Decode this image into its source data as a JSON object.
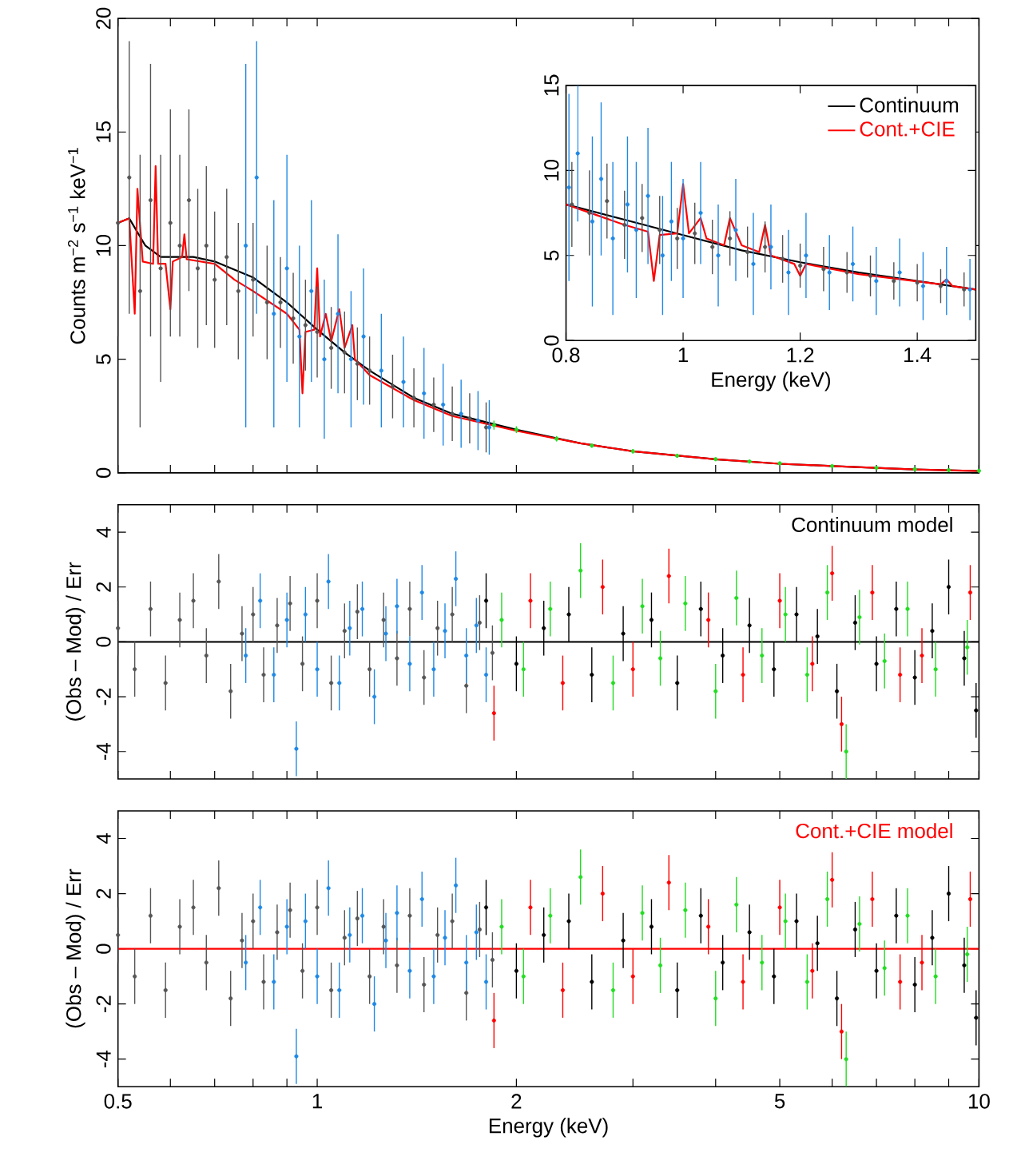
{
  "chart_data": [
    {
      "type": "scatter",
      "ylabel": "Counts m$^{−2}$ s$^{−1}$ keV$^{−1}$",
      "log": "x",
      "xlim": [
        0.5,
        10
      ],
      "ylim": [
        0,
        20
      ],
      "tick_labels": "y",
      "xticks": [
        {
          "value": 0.5,
          "label": null
        },
        {
          "value": 0.6,
          "label": null
        },
        {
          "value": 0.7,
          "label": null
        },
        {
          "value": 0.8,
          "label": null
        },
        {
          "value": 0.9,
          "label": null
        },
        {
          "value": 1,
          "label": null
        },
        {
          "value": 2,
          "label": null
        },
        {
          "value": 3,
          "label": null
        },
        {
          "value": 4,
          "label": null
        },
        {
          "value": 5,
          "label": null
        },
        {
          "value": 6,
          "label": null
        },
        {
          "value": 7,
          "label": null
        },
        {
          "value": 8,
          "label": null
        },
        {
          "value": 9,
          "label": null
        },
        {
          "value": 10,
          "label": null
        }
      ],
      "yticks": [
        0,
        5,
        10,
        15,
        20
      ],
      "series": [
        {
          "color": "#555555",
          "x": [
            0.5,
            0.52,
            0.54,
            0.56,
            0.58,
            0.6,
            0.62,
            0.64,
            0.66,
            0.68,
            0.7,
            0.73,
            0.76,
            0.8,
            0.84,
            0.88,
            0.92,
            0.96,
            1.0,
            1.05,
            1.1,
            1.15,
            1.2,
            1.3,
            1.4,
            1.5,
            1.6,
            1.7,
            1.8
          ],
          "values": [
            11,
            13,
            8,
            12,
            9,
            11,
            10,
            12,
            9,
            10,
            8.5,
            9.5,
            8,
            8.5,
            7.5,
            7.5,
            6.8,
            6.5,
            6.2,
            5.5,
            5.3,
            4.8,
            4.5,
            3.8,
            3.3,
            3.0,
            2.6,
            2.4,
            2.0
          ],
          "errors": [
            5,
            6,
            6,
            6,
            5,
            5,
            4,
            4,
            3.5,
            3.5,
            3,
            3,
            3,
            2.5,
            2.5,
            2,
            2,
            2,
            2,
            1.8,
            1.8,
            1.6,
            1.5,
            1.4,
            1.3,
            1.2,
            1.2,
            1.1,
            1.1
          ]
        },
        {
          "color": "#1e88e5",
          "x": [
            0.78,
            0.81,
            0.86,
            0.9,
            0.94,
            0.98,
            1.025,
            1.075,
            1.125,
            1.175,
            1.25,
            1.35,
            1.45,
            1.55,
            1.65,
            1.75,
            1.82
          ],
          "values": [
            10,
            13,
            7,
            9,
            6,
            8,
            5,
            7,
            5,
            6,
            4.5,
            4,
            3.5,
            3,
            2.6,
            2.3,
            2.0
          ],
          "errors": [
            8,
            6,
            5,
            5,
            4,
            4,
            3.5,
            3.5,
            3,
            3,
            2.5,
            2,
            2,
            1.8,
            1.5,
            1.3,
            1.2
          ]
        },
        {
          "type": "line",
          "color": "#000000",
          "x": [
            0.5,
            0.52,
            0.55,
            0.58,
            0.65,
            0.7,
            0.8,
            0.9,
            1.0,
            1.1,
            1.2,
            1.4,
            1.6,
            2.0,
            2.5,
            3,
            4,
            5,
            6,
            8,
            10
          ],
          "values": [
            11,
            11.2,
            10,
            9.5,
            9.5,
            9.3,
            8.6,
            7.5,
            6.3,
            5.3,
            4.5,
            3.3,
            2.6,
            1.9,
            1.3,
            0.95,
            0.6,
            0.4,
            0.3,
            0.15,
            0.08
          ]
        },
        {
          "type": "line",
          "color": "#ff0000",
          "x": [
            0.5,
            0.52,
            0.53,
            0.535,
            0.545,
            0.565,
            0.57,
            0.575,
            0.59,
            0.6,
            0.605,
            0.625,
            0.63,
            0.635,
            0.7,
            0.75,
            0.8,
            0.9,
            0.94,
            0.95,
            0.96,
            0.99,
            1.0,
            1.01,
            1.03,
            1.05,
            1.08,
            1.1,
            1.13,
            1.14,
            1.2,
            1.4,
            1.6,
            2.0,
            2.5,
            3,
            4,
            5,
            6,
            8,
            10
          ],
          "values": [
            11,
            11.2,
            7,
            12.5,
            9.3,
            9.2,
            13.5,
            9.2,
            9.2,
            7.2,
            9.3,
            9.5,
            10.5,
            9.4,
            9.2,
            8.5,
            8,
            7.0,
            6.3,
            3.5,
            6.2,
            6.3,
            9,
            6,
            7,
            5.8,
            7.2,
            5.5,
            6.5,
            5,
            4.3,
            3.2,
            2.5,
            1.85,
            1.3,
            0.95,
            0.6,
            0.4,
            0.3,
            0.15,
            0.08
          ]
        },
        {
          "color": "#22dd22",
          "x": [
            1.85,
            2.0,
            2.3,
            2.6,
            3.0,
            3.5,
            4.0,
            4.5,
            5,
            6,
            7,
            8,
            9,
            10
          ],
          "values": [
            2.1,
            1.9,
            1.5,
            1.2,
            0.95,
            0.75,
            0.6,
            0.5,
            0.42,
            0.3,
            0.22,
            0.16,
            0.12,
            0.09
          ],
          "errors": [
            0.2,
            0.15,
            0.12,
            0.1,
            0.1,
            0.08,
            0.07,
            0.06,
            0.05,
            0.05,
            0.04,
            0.04,
            0.03,
            0.03
          ]
        }
      ]
    },
    {
      "type": "scatter",
      "xlabel": "Energy (keV)",
      "xlim": [
        0.8,
        1.5
      ],
      "ylim": [
        0,
        15
      ],
      "xticks": [
        0.8,
        1,
        1.2,
        1.4
      ],
      "yticks": [
        0,
        5,
        10,
        15
      ],
      "legend": "top right",
      "series": [
        {
          "color": "#555555",
          "x": [
            0.81,
            0.84,
            0.87,
            0.9,
            0.93,
            0.96,
            0.99,
            1.02,
            1.05,
            1.08,
            1.11,
            1.14,
            1.17,
            1.2,
            1.24,
            1.28,
            1.32,
            1.36,
            1.4,
            1.44,
            1.48
          ],
          "values": [
            8,
            7.5,
            8.2,
            6.8,
            7.2,
            6.5,
            6,
            6.3,
            5.5,
            6,
            5.2,
            5.5,
            4.8,
            4.4,
            4.2,
            4,
            3.8,
            3.5,
            3.4,
            3.2,
            3
          ],
          "errors": [
            2.5,
            2.5,
            2.2,
            2,
            2,
            2,
            1.8,
            1.8,
            1.6,
            1.6,
            1.5,
            1.5,
            1.4,
            1.3,
            1.3,
            1.2,
            1.2,
            1.1,
            1.1,
            1,
            1
          ]
        },
        {
          "color": "#1e88e5",
          "x": [
            0.805,
            0.82,
            0.845,
            0.86,
            0.88,
            0.905,
            0.92,
            0.94,
            0.965,
            0.98,
            1.0,
            1.03,
            1.06,
            1.09,
            1.12,
            1.15,
            1.18,
            1.21,
            1.25,
            1.29,
            1.33,
            1.37,
            1.41,
            1.45,
            1.49
          ],
          "values": [
            9,
            11,
            7,
            9.5,
            6,
            8,
            6.5,
            8.5,
            5,
            7,
            6,
            7.5,
            5,
            6.5,
            4.5,
            5.5,
            4,
            5,
            4,
            4.5,
            3.5,
            4,
            3.2,
            3.5,
            3
          ],
          "errors": [
            5.5,
            4,
            5,
            4.5,
            4.5,
            4,
            4,
            4,
            3.5,
            3.5,
            3.5,
            3,
            3,
            3,
            3,
            2.5,
            2.5,
            2.5,
            2.2,
            2.2,
            2,
            2,
            2,
            2,
            1.8
          ]
        },
        {
          "type": "line",
          "name": "Continuum",
          "color": "#000000",
          "x": [
            0.8,
            0.9,
            1.0,
            1.1,
            1.2,
            1.3,
            1.4,
            1.5
          ],
          "values": [
            8,
            7.1,
            6.2,
            5.3,
            4.6,
            4.0,
            3.5,
            3.0
          ]
        },
        {
          "type": "line",
          "name": "Cont.+CIE",
          "color": "#ff0000",
          "x": [
            0.8,
            0.9,
            0.94,
            0.95,
            0.96,
            0.99,
            1.0,
            1.01,
            1.03,
            1.04,
            1.07,
            1.08,
            1.1,
            1.13,
            1.14,
            1.15,
            1.19,
            1.2,
            1.21,
            1.3,
            1.44,
            1.45,
            1.46,
            1.5
          ],
          "values": [
            8,
            6.8,
            6.4,
            3.5,
            6.2,
            6.3,
            9.2,
            6.3,
            7.2,
            6,
            5.6,
            7.2,
            5.6,
            5.2,
            6.8,
            5,
            4.5,
            3.8,
            4.5,
            3.9,
            3.3,
            3.6,
            3.2,
            3.0
          ]
        }
      ]
    },
    {
      "type": "scatter",
      "ylabel": "(Obs – Mod) / Err",
      "log": "x",
      "xlim": [
        0.5,
        10
      ],
      "ylim": [
        -5,
        5
      ],
      "tick_labels": "y",
      "legend": "top right",
      "xticks": [
        {
          "value": 0.5,
          "label": null
        },
        {
          "value": 0.6,
          "label": null
        },
        {
          "value": 0.7,
          "label": null
        },
        {
          "value": 0.8,
          "label": null
        },
        {
          "value": 0.9,
          "label": null
        },
        {
          "value": 1,
          "label": null
        },
        {
          "value": 2,
          "label": null
        },
        {
          "value": 3,
          "label": null
        },
        {
          "value": 4,
          "label": null
        },
        {
          "value": 5,
          "label": null
        },
        {
          "value": 6,
          "label": null
        },
        {
          "value": 7,
          "label": null
        },
        {
          "value": 8,
          "label": null
        },
        {
          "value": 9,
          "label": null
        },
        {
          "value": 10,
          "label": null
        }
      ],
      "yticks": [
        -4,
        -2,
        0,
        2,
        4
      ],
      "series": [
        {
          "color": "#555555",
          "x": [
            0.5,
            0.53,
            0.56,
            0.59,
            0.62,
            0.65,
            0.68,
            0.71,
            0.74,
            0.77,
            0.8,
            0.83,
            0.87,
            0.91,
            0.95,
            1.0,
            1.05,
            1.1,
            1.15,
            1.2,
            1.26,
            1.32,
            1.38,
            1.45,
            1.52,
            1.6,
            1.68,
            1.76,
            1.84
          ],
          "values": [
            0.5,
            -1,
            1.2,
            -1.5,
            0.8,
            1.5,
            -0.5,
            2.2,
            -1.8,
            0.3,
            1.0,
            -1.2,
            0.6,
            1.4,
            -0.8,
            1.5,
            -1.5,
            0.4,
            1.1,
            -1.0,
            0.8,
            -0.6,
            1.2,
            -1.3,
            0.5,
            1.0,
            -1.6,
            0.7,
            -0.4
          ],
          "errors": [
            1,
            1,
            1,
            1,
            1,
            1,
            1,
            1,
            1,
            1,
            1,
            1,
            1,
            1,
            1,
            1,
            1,
            1,
            1,
            1,
            1,
            1,
            1,
            1,
            1,
            1,
            1,
            1,
            1
          ]
        },
        {
          "color": "#1e88e5",
          "x": [
            0.78,
            0.82,
            0.86,
            0.9,
            0.93,
            0.96,
            1.0,
            1.04,
            1.08,
            1.12,
            1.17,
            1.22,
            1.27,
            1.32,
            1.38,
            1.44,
            1.5,
            1.56,
            1.62,
            1.68,
            1.74,
            1.8
          ],
          "values": [
            -0.5,
            1.5,
            -1.2,
            0.8,
            -3.9,
            1.0,
            -1.0,
            2.2,
            -1.5,
            0.5,
            1.2,
            -2.0,
            0.3,
            1.3,
            -0.8,
            1.8,
            -1.0,
            0.4,
            2.3,
            -0.5,
            0.6,
            -1.2
          ],
          "errors": [
            1,
            1,
            1,
            1,
            1,
            1,
            1,
            1,
            1,
            1,
            1,
            1,
            1,
            1,
            1,
            1,
            1,
            1,
            1,
            1,
            1,
            1
          ]
        },
        {
          "color": "#000000",
          "x": [
            1.8,
            2.0,
            2.2,
            2.4,
            2.6,
            2.9,
            3.2,
            3.5,
            3.8,
            4.1,
            4.5,
            4.9,
            5.3,
            5.7,
            6.1,
            6.5,
            7.0,
            7.5,
            8.0,
            8.5,
            9.0,
            9.5,
            9.9
          ],
          "values": [
            1.5,
            -0.8,
            0.5,
            1.0,
            -1.2,
            0.3,
            0.8,
            -1.5,
            1.2,
            -0.5,
            0.6,
            -1.0,
            1.0,
            0.2,
            -1.8,
            0.7,
            -0.8,
            1.2,
            -1.3,
            0.4,
            2.0,
            -0.6,
            -2.5
          ],
          "errors": [
            1,
            1,
            1,
            1,
            1,
            1,
            1,
            1,
            1,
            1,
            1,
            1,
            1,
            1,
            1,
            1,
            1,
            1,
            1,
            1,
            1,
            1,
            1
          ]
        },
        {
          "color": "#ff0000",
          "x": [
            1.85,
            2.1,
            2.35,
            2.7,
            3.0,
            3.4,
            3.9,
            4.4,
            5.0,
            5.6,
            6.0,
            6.2,
            6.9,
            7.6,
            8.2,
            9.7
          ],
          "values": [
            -2.6,
            1.5,
            -1.5,
            2.0,
            -1.0,
            2.4,
            0.8,
            -1.2,
            1.5,
            -0.8,
            2.5,
            -3.0,
            1.8,
            -1.2,
            -0.5,
            1.8
          ],
          "errors": [
            1,
            1,
            1,
            1,
            1,
            1,
            1,
            1,
            1,
            1,
            1,
            1,
            1,
            1,
            1,
            1
          ]
        },
        {
          "color": "#22dd22",
          "x": [
            1.9,
            2.05,
            2.25,
            2.5,
            2.8,
            3.1,
            3.3,
            3.6,
            4.0,
            4.3,
            4.7,
            5.1,
            5.5,
            5.9,
            6.3,
            6.6,
            7.2,
            7.8,
            8.6,
            9.6
          ],
          "values": [
            0.8,
            -1.0,
            1.2,
            2.6,
            -1.5,
            1.3,
            -0.6,
            1.4,
            -1.8,
            1.6,
            -0.5,
            1.0,
            -1.2,
            1.8,
            -4.0,
            0.9,
            -0.7,
            1.2,
            -1.0,
            -0.2
          ],
          "errors": [
            1,
            1,
            1,
            1,
            1,
            1,
            1,
            1,
            1,
            1,
            1,
            1,
            1,
            1,
            1,
            1,
            1,
            1,
            1,
            1
          ]
        },
        {
          "type": "line",
          "name": "Continuum model",
          "color": "#000000",
          "x": [
            0.5,
            10
          ],
          "values": [
            0,
            0
          ]
        }
      ]
    },
    {
      "type": "scatter",
      "xlabel": "Energy (keV)",
      "ylabel": "(Obs – Mod) / Err",
      "log": "x",
      "xlim": [
        0.5,
        10
      ],
      "ylim": [
        -5,
        5
      ],
      "legend": "top right",
      "xticks": [
        {
          "value": 0.5,
          "label": "0.5"
        },
        {
          "value": 0.6,
          "label": null
        },
        {
          "value": 0.7,
          "label": null
        },
        {
          "value": 0.8,
          "label": null
        },
        {
          "value": 0.9,
          "label": null
        },
        {
          "value": 1,
          "label": "1"
        },
        {
          "value": 2,
          "label": "2"
        },
        {
          "value": 3,
          "label": null
        },
        {
          "value": 4,
          "label": null
        },
        {
          "value": 5,
          "label": "5"
        },
        {
          "value": 6,
          "label": null
        },
        {
          "value": 7,
          "label": null
        },
        {
          "value": 8,
          "label": null
        },
        {
          "value": 9,
          "label": null
        },
        {
          "value": 10,
          "label": "10"
        }
      ],
      "yticks": [
        -4,
        -2,
        0,
        2,
        4
      ],
      "series": [
        {
          "color": "#555555",
          "x": [
            0.5,
            0.53,
            0.56,
            0.59,
            0.62,
            0.65,
            0.68,
            0.71,
            0.74,
            0.77,
            0.8,
            0.83,
            0.87,
            0.91,
            0.95,
            1.0,
            1.05,
            1.1,
            1.15,
            1.2,
            1.26,
            1.32,
            1.38,
            1.45,
            1.52,
            1.6,
            1.68,
            1.76,
            1.84
          ],
          "values": [
            0.5,
            -1,
            1.2,
            -1.5,
            0.8,
            1.5,
            -0.5,
            2.2,
            -1.8,
            0.3,
            1.0,
            -1.2,
            0.6,
            1.4,
            -0.8,
            1.5,
            -1.5,
            0.4,
            1.1,
            -1.0,
            0.8,
            -0.6,
            1.2,
            -1.3,
            0.5,
            1.0,
            -1.6,
            0.7,
            -0.4
          ],
          "errors": [
            1,
            1,
            1,
            1,
            1,
            1,
            1,
            1,
            1,
            1,
            1,
            1,
            1,
            1,
            1,
            1,
            1,
            1,
            1,
            1,
            1,
            1,
            1,
            1,
            1,
            1,
            1,
            1,
            1
          ]
        },
        {
          "color": "#1e88e5",
          "x": [
            0.78,
            0.82,
            0.86,
            0.9,
            0.93,
            0.96,
            1.0,
            1.04,
            1.08,
            1.12,
            1.17,
            1.22,
            1.27,
            1.32,
            1.38,
            1.44,
            1.5,
            1.56,
            1.62,
            1.68,
            1.74,
            1.8
          ],
          "values": [
            -0.5,
            1.5,
            -1.2,
            0.8,
            -3.9,
            1.0,
            -1.0,
            2.2,
            -1.5,
            0.5,
            1.2,
            -2.0,
            0.3,
            1.3,
            -0.8,
            1.8,
            -1.0,
            0.4,
            2.3,
            -0.5,
            0.6,
            -1.2
          ],
          "errors": [
            1,
            1,
            1,
            1,
            1,
            1,
            1,
            1,
            1,
            1,
            1,
            1,
            1,
            1,
            1,
            1,
            1,
            1,
            1,
            1,
            1,
            1
          ]
        },
        {
          "color": "#000000",
          "x": [
            1.8,
            2.0,
            2.2,
            2.4,
            2.6,
            2.9,
            3.2,
            3.5,
            3.8,
            4.1,
            4.5,
            4.9,
            5.3,
            5.7,
            6.1,
            6.5,
            7.0,
            7.5,
            8.0,
            8.5,
            9.0,
            9.5,
            9.9
          ],
          "values": [
            1.5,
            -0.8,
            0.5,
            1.0,
            -1.2,
            0.3,
            0.8,
            -1.5,
            1.2,
            -0.5,
            0.6,
            -1.0,
            1.0,
            0.2,
            -1.8,
            0.7,
            -0.8,
            1.2,
            -1.3,
            0.4,
            2.0,
            -0.6,
            -2.5
          ],
          "errors": [
            1,
            1,
            1,
            1,
            1,
            1,
            1,
            1,
            1,
            1,
            1,
            1,
            1,
            1,
            1,
            1,
            1,
            1,
            1,
            1,
            1,
            1,
            1
          ]
        },
        {
          "color": "#ff0000",
          "x": [
            1.85,
            2.1,
            2.35,
            2.7,
            3.0,
            3.4,
            3.9,
            4.4,
            5.0,
            5.6,
            6.0,
            6.2,
            6.9,
            7.6,
            8.2,
            9.7
          ],
          "values": [
            -2.6,
            1.5,
            -1.5,
            2.0,
            -1.0,
            2.4,
            0.8,
            -1.2,
            1.5,
            -0.8,
            2.5,
            -3.0,
            1.8,
            -1.2,
            -0.5,
            1.8
          ],
          "errors": [
            1,
            1,
            1,
            1,
            1,
            1,
            1,
            1,
            1,
            1,
            1,
            1,
            1,
            1,
            1,
            1
          ]
        },
        {
          "color": "#22dd22",
          "x": [
            1.9,
            2.05,
            2.25,
            2.5,
            2.8,
            3.1,
            3.3,
            3.6,
            4.0,
            4.3,
            4.7,
            5.1,
            5.5,
            5.9,
            6.3,
            6.6,
            7.2,
            7.8,
            8.6,
            9.6
          ],
          "values": [
            0.8,
            -1.0,
            1.2,
            2.6,
            -1.5,
            1.3,
            -0.6,
            1.4,
            -1.8,
            1.6,
            -0.5,
            1.0,
            -1.2,
            1.8,
            -4.0,
            0.9,
            -0.7,
            1.2,
            -1.0,
            -0.2
          ],
          "errors": [
            1,
            1,
            1,
            1,
            1,
            1,
            1,
            1,
            1,
            1,
            1,
            1,
            1,
            1,
            1,
            1,
            1,
            1,
            1,
            1
          ]
        },
        {
          "type": "line",
          "name": "Cont.+CIE model",
          "color": "#ff0000",
          "x": [
            0.5,
            10
          ],
          "values": [
            0,
            0
          ]
        }
      ]
    }
  ]
}
